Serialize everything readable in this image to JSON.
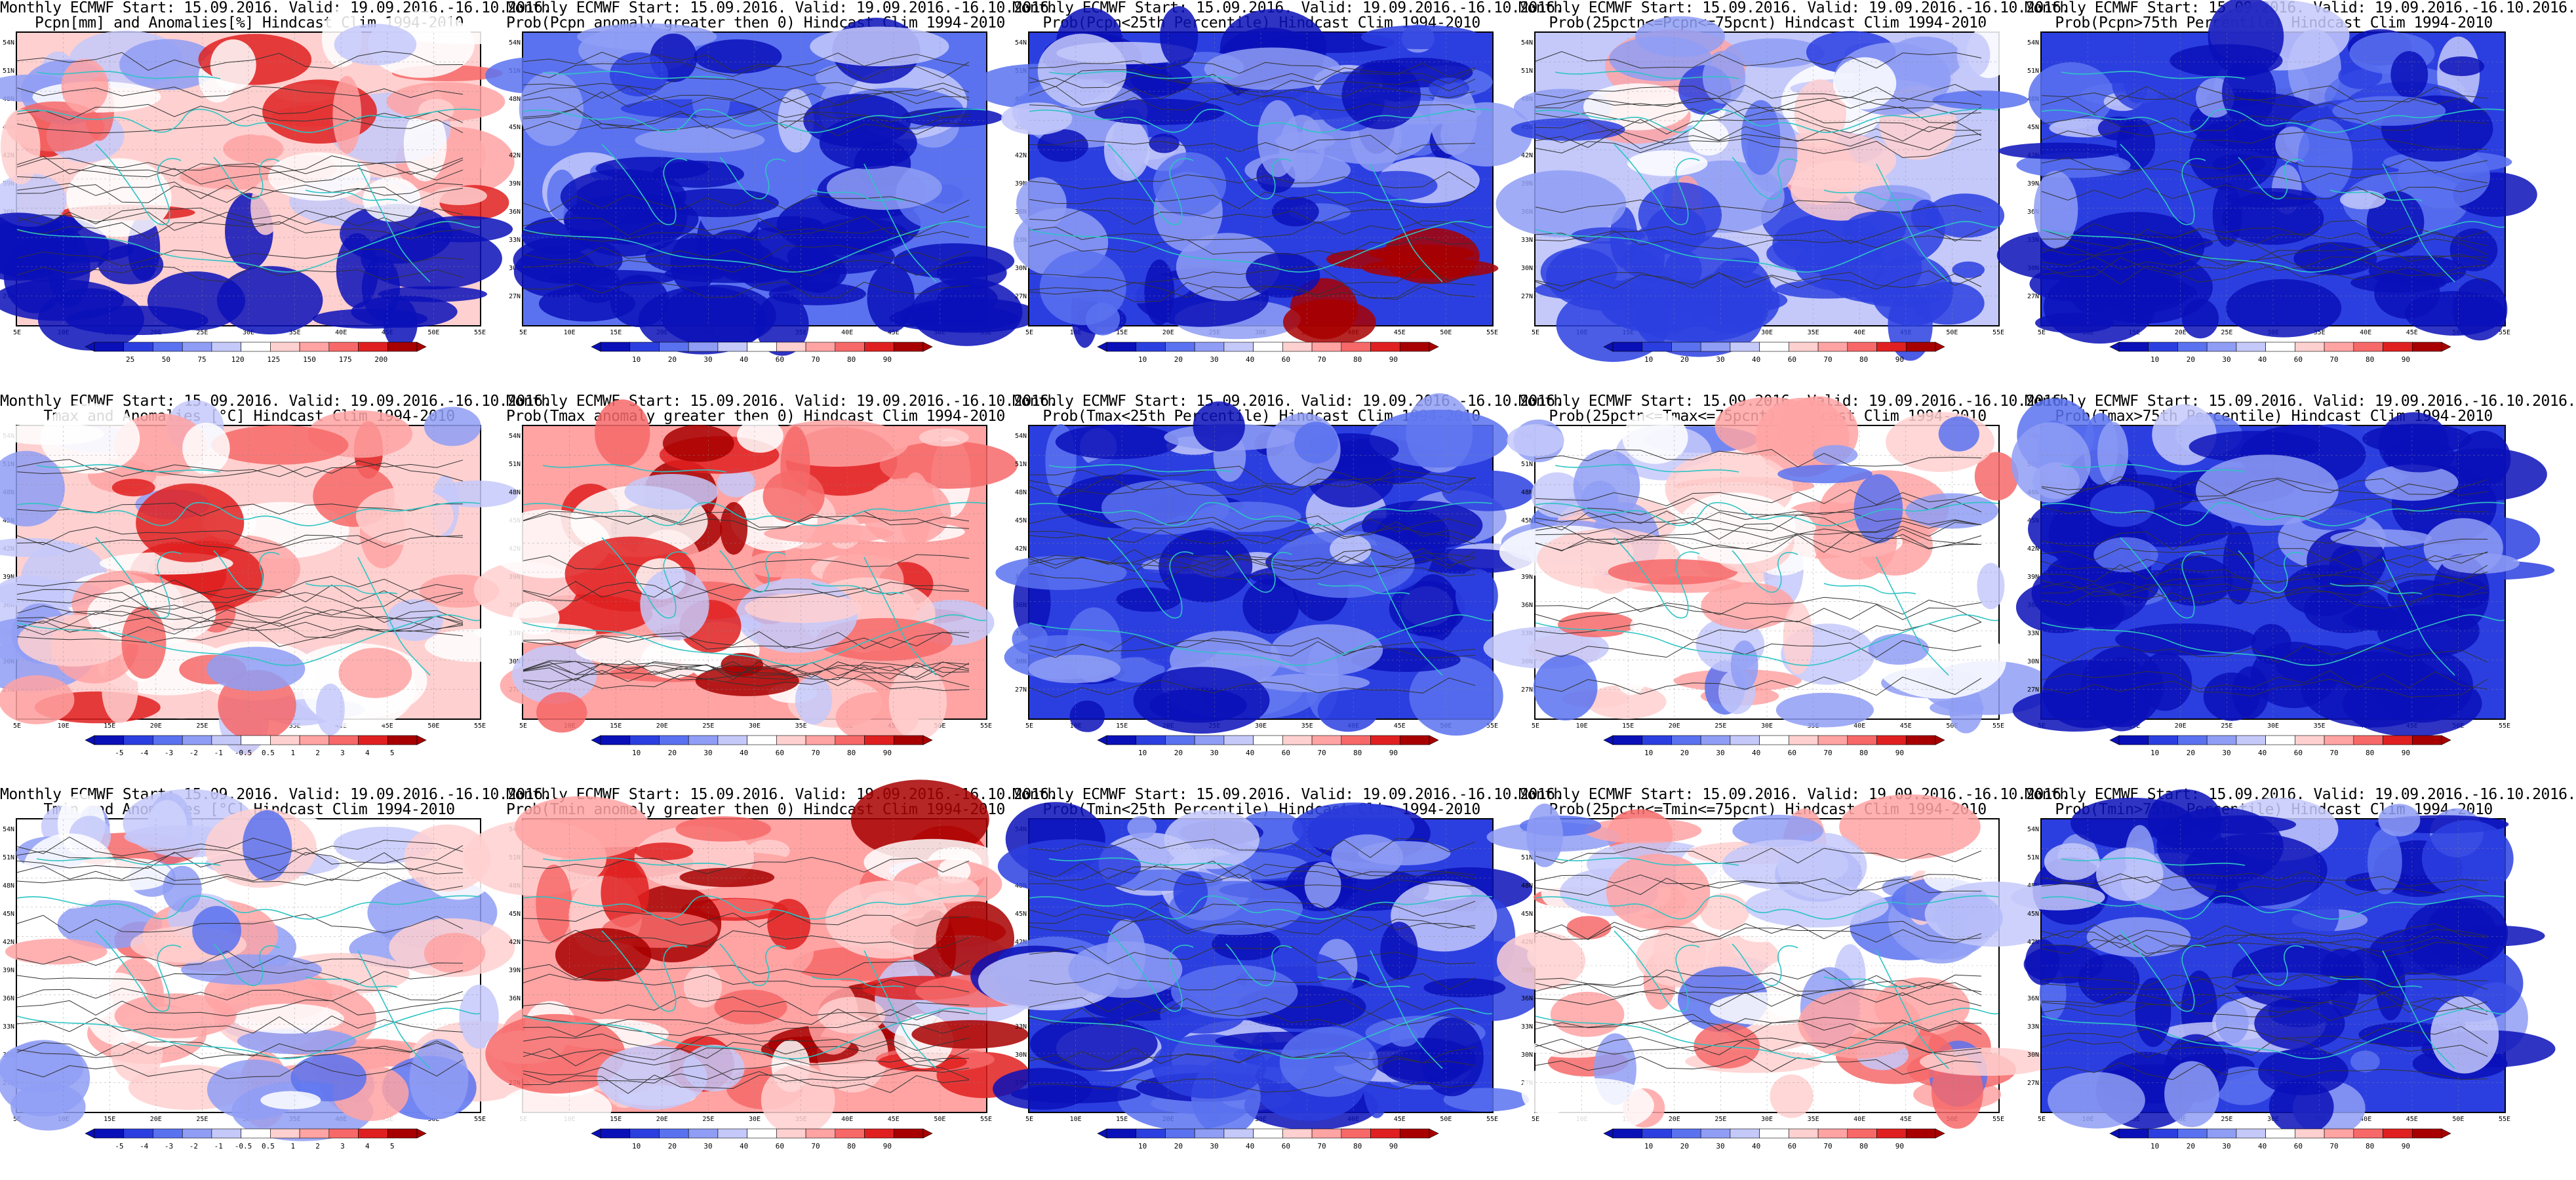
{
  "titles": [
    [
      "Monthly ECMWF Start: 15.09.2016. Valid: 19.09.2016.-16.10.2016.",
      "Pcpn[mm] and Anomalies[%] Hindcast Clim 1994-2010"
    ],
    [
      "Monthly ECMWF Start: 15.09.2016. Valid: 19.09.2016.-16.10.2016.",
      "Prob(Pcpn anomaly greater then 0) Hindcast Clim 1994-2010"
    ],
    [
      "Monthly ECMWF Start: 15.09.2016. Valid: 19.09.2016.-16.10.2016.",
      "Prob(Pcpn<25th Percentile) Hindcast Clim 1994-2010"
    ],
    [
      "Monthly ECMWF Start: 15.09.2016. Valid: 19.09.2016.-16.10.2016.",
      "Prob(25pctn<=Pcpn<=75pcnt) Hindcast Clim 1994-2010"
    ],
    [
      "Monthly ECMWF Start: 15.09.2016. Valid: 19.09.2016.-16.10.2016.",
      "Prob(Pcpn>75th Percentile) Hindcast Clim 1994-2010"
    ],
    [
      "Monthly ECMWF Start: 15.09.2016. Valid: 19.09.2016.-16.10.2016.",
      "Tmax and Anomalies [°C] Hindcast Clim 1994-2010"
    ],
    [
      "Monthly ECMWF Start: 15.09.2016. Valid: 19.09.2016.-16.10.2016.",
      "Prob(Tmax anomaly greater then 0) Hindcast Clim 1994-2010"
    ],
    [
      "Monthly ECMWF Start: 15.09.2016. Valid: 19.09.2016.-16.10.2016.",
      "Prob(Tmax<25th Percentile) Hindcast Clim 1994-2010"
    ],
    [
      "Monthly ECMWF Start: 15.09.2016. Valid: 19.09.2016.-16.10.2016.",
      "Prob(25pctn<=Tmax<=75pcnt) Hindcast Clim 1994-2010"
    ],
    [
      "Monthly ECMWF Start: 15.09.2016. Valid: 19.09.2016.-16.10.2016.",
      "Prob(Tmax>75th Percentile) Hindcast Clim 1994-2010"
    ],
    [
      "Monthly ECMWF Start: 15.09.2016. Valid: 19.09.2016.-16.10.2016.",
      "Tmin and Anomalies [°C] Hindcast Clim 1994-2010"
    ],
    [
      "Monthly ECMWF Start: 15.09.2016. Valid: 19.09.2016.-16.10.2016.",
      "Prob(Tmin anomaly greater then 0) Hindcast Clim 1994-2010"
    ],
    [
      "Monthly ECMWF Start: 15.09.2016. Valid: 19.09.2016.-16.10.2016.",
      "Prob(Tmin<25th Percentile) Hindcast Clim 1994-2010"
    ],
    [
      "Monthly ECMWF Start: 15.09.2016. Valid: 19.09.2016.-16.10.2016.",
      "Prob(25pctn<=Tmin<=75pcnt) Hindcast Clim 1994-2010"
    ],
    [
      "Monthly ECMWF Start: 15.09.2016. Valid: 19.09.2016.-16.10.2016.",
      "Prob(Tmin>75th Percentile) Hindcast Clim 1994-2010"
    ]
  ],
  "lat_labels": [
    "54N",
    "51N",
    "48N",
    "45N",
    "42N",
    "39N",
    "36N",
    "33N",
    "30N",
    "27N"
  ],
  "lon_labels": [
    "5E",
    "10E",
    "15E",
    "20E",
    "25E",
    "30E",
    "35E",
    "40E",
    "45E",
    "50E",
    "55E"
  ],
  "colorbars": {
    "pcpn_anom": [
      "25",
      "50",
      "75",
      "120",
      "125",
      "150",
      "175",
      "200"
    ],
    "temp_anom": [
      "-5",
      "-4",
      "-3",
      "-2",
      "-1",
      "-0.5",
      "0.5",
      "1",
      "2",
      "3",
      "4",
      "5"
    ],
    "prob": [
      "10",
      "20",
      "30",
      "40",
      "60",
      "70",
      "80",
      "90"
    ]
  },
  "colors": {
    "coast": "#2ec4c4",
    "contour": "#333333",
    "palette": [
      "#0a10b8",
      "#2b3fe0",
      "#5a72f0",
      "#8f9df5",
      "#c4c9fa",
      "#ffffff",
      "#ffd0d0",
      "#ffa3a3",
      "#f76868",
      "#e02020",
      "#a80000"
    ]
  }
}
